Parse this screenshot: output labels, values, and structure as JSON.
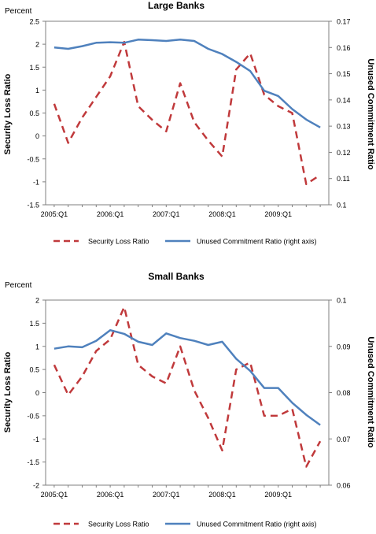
{
  "charts": [
    {
      "title": "Large Banks",
      "unit_label": "Percent",
      "ylabel_left": "Security Loss Ratio",
      "ylabel_right": "Unused Commitment Ratio",
      "x_tick_labels": [
        "2005:Q1",
        "2006:Q1",
        "2007:Q1",
        "2008:Q1",
        "2009:Q1"
      ],
      "legend": [
        "Security Loss Ratio",
        "Unused Commitment Ratio (right axis)"
      ]
    },
    {
      "title": "Small Banks",
      "unit_label": "Percent",
      "ylabel_left": "Security Loss Ratio",
      "ylabel_right": "Unused Commitment Ratio",
      "x_tick_labels": [
        "2005:Q1",
        "2006:Q1",
        "2007:Q1",
        "2008:Q1",
        "2009:Q1"
      ],
      "legend": [
        "Security Loss Ratio",
        "Unused Commitment Ratio (right axis)"
      ]
    }
  ],
  "chart_data": [
    {
      "type": "line",
      "title": "Large Banks",
      "x": [
        "2005:Q1",
        "2005:Q2",
        "2005:Q3",
        "2005:Q4",
        "2006:Q1",
        "2006:Q2",
        "2006:Q3",
        "2006:Q4",
        "2007:Q1",
        "2007:Q2",
        "2007:Q3",
        "2007:Q4",
        "2008:Q1",
        "2008:Q2",
        "2008:Q3",
        "2008:Q4",
        "2009:Q1",
        "2009:Q2",
        "2009:Q3",
        "2009:Q4"
      ],
      "x_tick_labels": [
        "2005:Q1",
        "2006:Q1",
        "2007:Q1",
        "2008:Q1",
        "2009:Q1"
      ],
      "y_left": {
        "label": "Security Loss Ratio",
        "unit": "Percent",
        "ylim": [
          -1.5,
          2.5
        ],
        "ticks": [
          -1.5,
          -1,
          -0.5,
          0,
          0.5,
          1,
          1.5,
          2,
          2.5
        ]
      },
      "y_right": {
        "label": "Unused Commitment Ratio",
        "ylim": [
          0.1,
          0.17
        ],
        "ticks": [
          0.1,
          0.11,
          0.12,
          0.13,
          0.14,
          0.15,
          0.16,
          0.17
        ]
      },
      "series": [
        {
          "name": "Security Loss Ratio",
          "axis": "left",
          "style": "dashed",
          "color": "#c0393b",
          "values": [
            0.7,
            -0.15,
            0.4,
            0.85,
            1.3,
            2.05,
            0.65,
            0.35,
            0.1,
            1.15,
            0.3,
            -0.1,
            -0.45,
            1.45,
            1.8,
            0.9,
            0.65,
            0.5,
            -1.05,
            -0.85
          ]
        },
        {
          "name": "Unused Commitment Ratio (right axis)",
          "axis": "right",
          "style": "solid",
          "color": "#4f81bd",
          "values": [
            0.16,
            0.1595,
            0.1605,
            0.1618,
            0.162,
            0.1618,
            0.163,
            0.1628,
            0.1625,
            0.163,
            0.1625,
            0.1595,
            0.1575,
            0.1545,
            0.151,
            0.1435,
            0.1415,
            0.1365,
            0.1325,
            0.1295
          ]
        }
      ],
      "legend_position": "bottom",
      "grid": false
    },
    {
      "type": "line",
      "title": "Small Banks",
      "x": [
        "2005:Q1",
        "2005:Q2",
        "2005:Q3",
        "2005:Q4",
        "2006:Q1",
        "2006:Q2",
        "2006:Q3",
        "2006:Q4",
        "2007:Q1",
        "2007:Q2",
        "2007:Q3",
        "2007:Q4",
        "2008:Q1",
        "2008:Q2",
        "2008:Q3",
        "2008:Q4",
        "2009:Q1",
        "2009:Q2",
        "2009:Q3",
        "2009:Q4"
      ],
      "x_tick_labels": [
        "2005:Q1",
        "2006:Q1",
        "2007:Q1",
        "2008:Q1",
        "2009:Q1"
      ],
      "y_left": {
        "label": "Security Loss Ratio",
        "unit": "Percent",
        "ylim": [
          -2,
          2
        ],
        "ticks": [
          -2,
          -1.5,
          -1,
          -0.5,
          0,
          0.5,
          1,
          1.5,
          2
        ]
      },
      "y_right": {
        "label": "Unused Commitment Ratio",
        "ylim": [
          0.06,
          0.1
        ],
        "ticks": [
          0.06,
          0.07,
          0.08,
          0.09,
          0.1
        ]
      },
      "series": [
        {
          "name": "Security Loss Ratio",
          "axis": "left",
          "style": "dashed",
          "color": "#c0393b",
          "values": [
            0.6,
            -0.05,
            0.35,
            0.9,
            1.15,
            1.85,
            0.6,
            0.35,
            0.2,
            1.0,
            0.05,
            -0.55,
            -1.25,
            0.5,
            0.65,
            -0.5,
            -0.5,
            -0.35,
            -1.6,
            -1.05
          ]
        },
        {
          "name": "Unused Commitment Ratio (right axis)",
          "axis": "right",
          "style": "solid",
          "color": "#4f81bd",
          "values": [
            0.0895,
            0.09,
            0.0898,
            0.0912,
            0.0935,
            0.0927,
            0.091,
            0.0903,
            0.0928,
            0.0918,
            0.0912,
            0.0903,
            0.091,
            0.0873,
            0.0847,
            0.081,
            0.081,
            0.0778,
            0.0752,
            0.073
          ]
        }
      ],
      "legend_position": "bottom",
      "grid": false
    }
  ]
}
